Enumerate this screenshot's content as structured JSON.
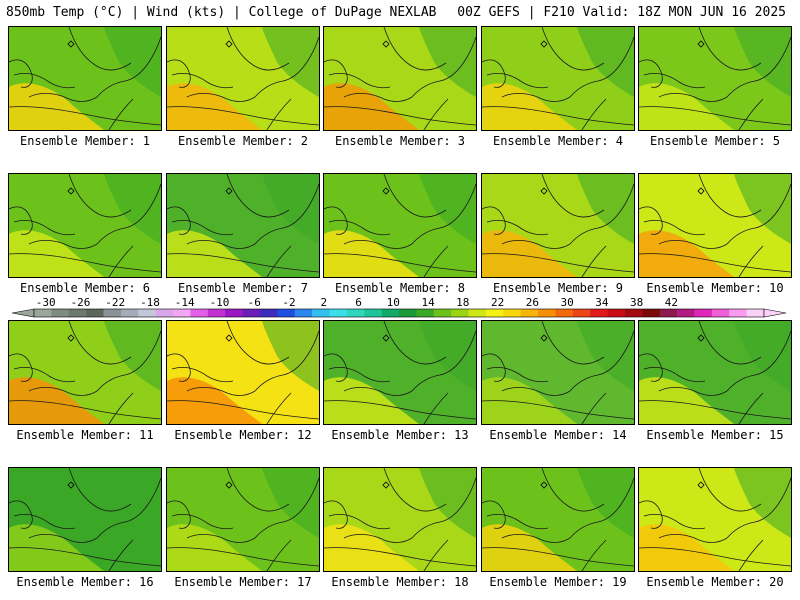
{
  "header": {
    "left": "850mb Temp (°C) | Wind (kts) | College of DuPage NEXLAB",
    "right": "00Z GEFS | F210 Valid: 18Z MON JUN 16 2025"
  },
  "colorbar": {
    "tick_labels": [
      "-30",
      "-26",
      "-22",
      "-18",
      "-14",
      "-10",
      "-6",
      "-2",
      "2",
      "6",
      "10",
      "14",
      "18",
      "22",
      "26",
      "30",
      "34",
      "38",
      "42"
    ],
    "colors": [
      "#9aa79a",
      "#7f8c80",
      "#6d7a6e",
      "#5c665d",
      "#8a9296",
      "#a4aeb8",
      "#c3c8d8",
      "#d8a6e8",
      "#f3a6f3",
      "#e35fe8",
      "#c330d2",
      "#9a18c3",
      "#6a1fb8",
      "#3d2dbf",
      "#1d4fe0",
      "#2b87ec",
      "#33bff0",
      "#3bdde6",
      "#30d7bd",
      "#1ec59a",
      "#13a96b",
      "#1c9a39",
      "#3aa726",
      "#6cc21a",
      "#9ad515",
      "#cde717",
      "#f4f215",
      "#f7d60c",
      "#f7b40a",
      "#f79007",
      "#f36a0d",
      "#ec4616",
      "#e11a1a",
      "#c80e14",
      "#a30b11",
      "#7d0a0b",
      "#8c1a4e",
      "#b21c82",
      "#dd28b9",
      "#f05fd8",
      "#f89cf0",
      "#fbd1f8"
    ]
  },
  "panels": [
    {
      "label": "Ensemble Member: 1",
      "fill": "#6cc21a",
      "warm": "#f4d40f"
    },
    {
      "label": "Ensemble Member: 2",
      "fill": "#b8de17",
      "warm": "#f7b40a"
    },
    {
      "label": "Ensemble Member: 3",
      "fill": "#a8d817",
      "warm": "#f39a07"
    },
    {
      "label": "Ensemble Member: 4",
      "fill": "#8fcf19",
      "warm": "#f4d40f"
    },
    {
      "label": "Ensemble Member: 5",
      "fill": "#7bc81b",
      "warm": "#cde717"
    },
    {
      "label": "Ensemble Member: 6",
      "fill": "#6cc21a",
      "warm": "#cde717"
    },
    {
      "label": "Ensemble Member: 7",
      "fill": "#4fb02a",
      "warm": "#cde717"
    },
    {
      "label": "Ensemble Member: 8",
      "fill": "#6cc21a",
      "warm": "#f4e215"
    },
    {
      "label": "Ensemble Member: 9",
      "fill": "#a8d817",
      "warm": "#f7b40a"
    },
    {
      "label": "Ensemble Member: 10",
      "fill": "#cde717",
      "warm": "#f7a00a"
    },
    {
      "label": "Ensemble Member: 11",
      "fill": "#8fcf19",
      "warm": "#f79007"
    },
    {
      "label": "Ensemble Member: 12",
      "fill": "#f4e215",
      "warm": "#f79007"
    },
    {
      "label": "Ensemble Member: 13",
      "fill": "#4fb02a",
      "warm": "#cde717"
    },
    {
      "label": "Ensemble Member: 14",
      "fill": "#5fb82e",
      "warm": "#a8d817"
    },
    {
      "label": "Ensemble Member: 15",
      "fill": "#4fb02a",
      "warm": "#cde717"
    },
    {
      "label": "Ensemble Member: 16",
      "fill": "#3aa726",
      "warm": "#8fcf19"
    },
    {
      "label": "Ensemble Member: 17",
      "fill": "#6cc21a",
      "warm": "#b8de17"
    },
    {
      "label": "Ensemble Member: 18",
      "fill": "#a8d817",
      "warm": "#f4e215"
    },
    {
      "label": "Ensemble Member: 19",
      "fill": "#6cc21a",
      "warm": "#f4d40f"
    },
    {
      "label": "Ensemble Member: 20",
      "fill": "#cde717",
      "warm": "#f7c40a"
    }
  ]
}
